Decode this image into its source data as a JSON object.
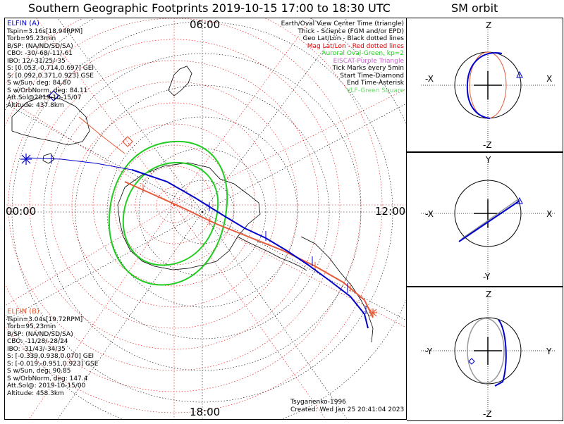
{
  "header": {
    "title": "Southern Geographic Footprints 2019-10-15 17:00 to 18:30 UTC",
    "side_title": "SM orbit"
  },
  "time_labels": {
    "top": "06:00",
    "left": "00:00",
    "right": "12:00",
    "bottom": "18:00"
  },
  "legend": [
    {
      "text": "Earth/Oval View Center Time (triangle)",
      "color": "#000000"
    },
    {
      "text": "Thick - Science (FGM and/or EPD)",
      "color": "#000000"
    },
    {
      "text": "Geo Lat/Lon - Black dotted lines",
      "color": "#000000"
    },
    {
      "text": "Mag Lat/Lon - Red dotted lines",
      "color": "#e00000"
    },
    {
      "text": "Auroral Oval-Green, kp=2",
      "color": "#22cc22"
    },
    {
      "text": "EISCAT-Purple Triangle",
      "color": "#cc66cc"
    },
    {
      "text": "Tick Marks every 5min",
      "color": "#000000"
    },
    {
      "text": "Start Time-Diamond",
      "color": "#000000"
    },
    {
      "text": "End Time-Asterisk",
      "color": "#000000"
    },
    {
      "text": "VLF-Green Square",
      "color": "#66dd66"
    }
  ],
  "elfin_a": {
    "name": "ELFIN (A)",
    "color": "#0000cc",
    "lines": [
      "Tspin=3.16s[18.94RPM]",
      "Torb=95.23min",
      "B/SP: (NA/ND/SD/SA)",
      "CBO: -30/-68/-11/-61",
      "IBO: 12/-31/25/-35",
      "S: [0.053,-0.714,0.697] GEI",
      "S: [0.092,0.371,0.923] GSE",
      "S w/Sun, deg: 84.80",
      "S w/OrbNorm, deg: 84.11",
      "Att.Sol@2019-10-15/07",
      "Altitude: 437.8km"
    ]
  },
  "elfin_b": {
    "name": "ELFIN (B)",
    "color": "#e55a3a",
    "lines": [
      "Tspin=3.04s[19.72RPM]",
      "Torb=95.23min",
      "B/SP: (NA/ND/SD/SA)",
      "CBO: -11/28/-28/24",
      "IBO: -31/43/-34/35",
      "S: [-0.339,0.938,0.070] GEI",
      "S: [-0.019,-0.951,0.923] GSE",
      "S w/Sun, deg: 90.85",
      "S w/OrbNorm, deg: 147.4",
      "Att.Sol@: 2019-10-15/00",
      "Altitude: 458.3km"
    ]
  },
  "credits": {
    "model": "Tsyganenko-1996",
    "created": "Created: Wed Jan 25 20:41:04 2023"
  },
  "sm_panels": [
    {
      "top": "Z",
      "bottom": "-Z",
      "left": "-X",
      "right": "X"
    },
    {
      "top": "Y",
      "bottom": "-Y",
      "left": "-X",
      "right": "X"
    },
    {
      "top": "Z",
      "bottom": "-Z",
      "left": "-Y",
      "right": "Y"
    }
  ],
  "colors": {
    "elfin_a": "#0000cc",
    "elfin_b": "#e55a3a",
    "oval": "#22cc22",
    "mag_grid": "#e00000",
    "geo_grid": "#000000"
  },
  "icons": [
    "start-diamond-icon",
    "end-asterisk-icon",
    "center-triangle-icon"
  ]
}
